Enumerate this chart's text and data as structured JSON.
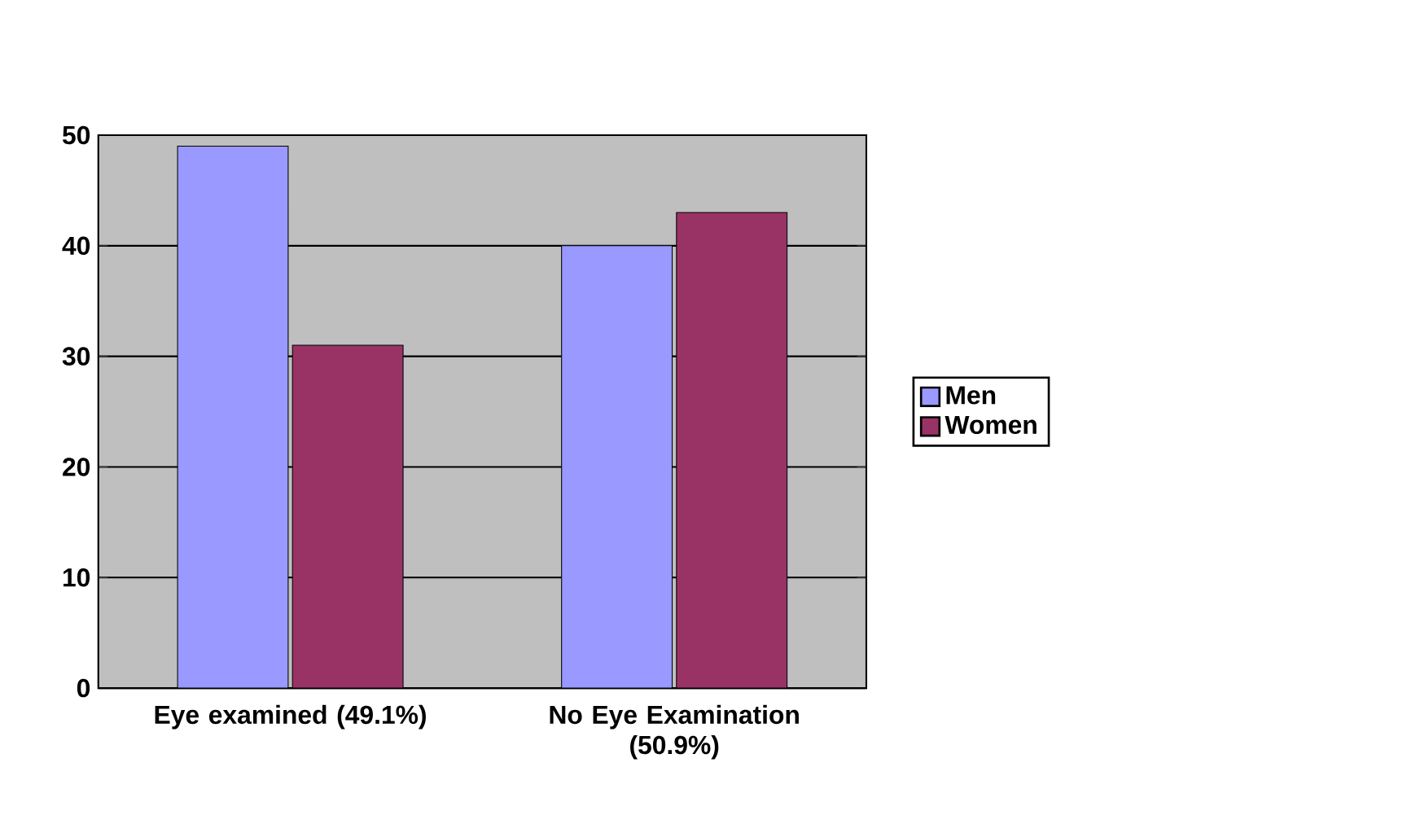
{
  "chart_data": {
    "type": "bar",
    "categories": [
      "Eye examined (49.1%)",
      "No Eye Examination (50.9%)"
    ],
    "series": [
      {
        "name": "Men",
        "color": "#9999ff",
        "values": [
          49,
          40
        ]
      },
      {
        "name": "Women",
        "color": "#993366",
        "values": [
          31,
          43
        ]
      }
    ],
    "ylim": [
      0,
      50
    ],
    "yticks": [
      0,
      10,
      20,
      30,
      40,
      50
    ],
    "grid": "y",
    "legend": "right"
  }
}
